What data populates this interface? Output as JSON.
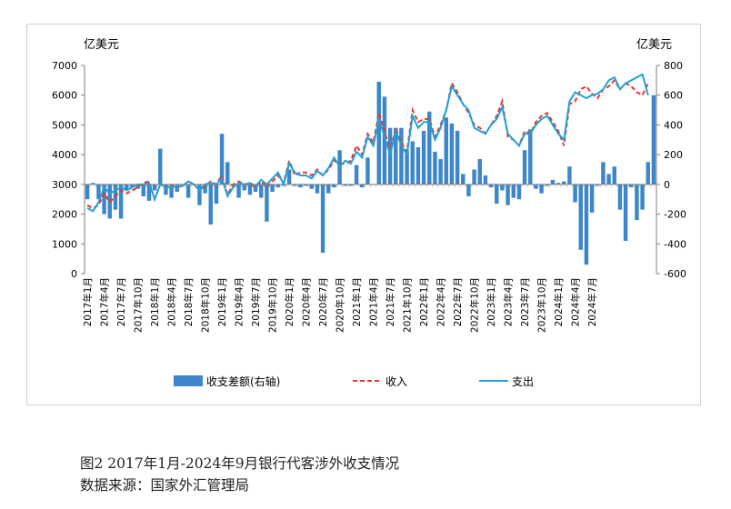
{
  "figure": {
    "caption": "图2   2017年1月-2024年9月银行代客涉外收支情况",
    "source": "数据来源：国家外汇管理局"
  },
  "chart_data": {
    "type": "bar+line",
    "y_left_label": "亿美元",
    "y_right_label": "亿美元",
    "y_left_ticks": [
      "0",
      "1000",
      "2000",
      "3000",
      "4000",
      "5000",
      "6000",
      "7000"
    ],
    "y_right_ticks": [
      "-600",
      "-400",
      "-200",
      "0",
      "200",
      "400",
      "600",
      "800"
    ],
    "y_left_lim": [
      0,
      7000
    ],
    "y_right_lim": [
      -600,
      800
    ],
    "x_tick_labels": [
      "2017年1月",
      "2017年4月",
      "2017年7月",
      "2017年10月",
      "2018年1月",
      "2018年4月",
      "2018年7月",
      "2018年10月",
      "2019年1月",
      "2019年4月",
      "2019年7月",
      "2019年10月",
      "2020年1月",
      "2020年4月",
      "2020年7月",
      "2020年10月",
      "2021年1月",
      "2021年4月",
      "2021年7月",
      "2021年10月",
      "2022年1月",
      "2022年4月",
      "2022年7月",
      "2022年10月",
      "2023年1月",
      "2023年4月",
      "2023年7月",
      "2023年10月",
      "2024年1月",
      "2024年4月",
      "2024年7月"
    ],
    "legend": {
      "position": "bottom",
      "items": [
        "收支差额(右轴)",
        "收入",
        "支出"
      ]
    },
    "colors": {
      "balance": "#3d86c9",
      "income": "#e8352b",
      "expense": "#1fa3d9"
    },
    "series": [
      {
        "name": "收支差额(右轴)",
        "axis": "right",
        "kind": "bar",
        "values": [
          -100,
          10,
          -100,
          -200,
          -230,
          -170,
          -230,
          -40,
          -20,
          -30,
          -80,
          -110,
          -40,
          240,
          -70,
          -90,
          -50,
          -10,
          -90,
          -5,
          -140,
          -60,
          -270,
          -130,
          340,
          150,
          -10,
          -90,
          -40,
          -70,
          -50,
          -90,
          -250,
          -50,
          -20,
          -10,
          100,
          -10,
          -20,
          -10,
          -30,
          -60,
          -460,
          -60,
          -20,
          230,
          -10,
          -10,
          130,
          -20,
          180,
          0,
          690,
          590,
          380,
          380,
          380,
          230,
          290,
          250,
          360,
          490,
          220,
          170,
          450,
          410,
          360,
          70,
          -80,
          100,
          170,
          60,
          -20,
          -130,
          -40,
          -140,
          -90,
          -100,
          230,
          370,
          -30,
          -60,
          -10,
          30,
          10,
          20,
          120,
          -120,
          -440,
          -540,
          -190,
          -10,
          150,
          70,
          120,
          -170,
          -380,
          -20,
          -240,
          -170,
          150,
          600
        ]
      },
      {
        "name": "收入",
        "axis": "left",
        "kind": "dashed-line",
        "values": [
          2300,
          2200,
          2300,
          2700,
          2400,
          2600,
          2800,
          2700,
          2800,
          2900,
          3050,
          3100,
          2500,
          3000,
          2900,
          2950,
          2900,
          2950,
          3100,
          3000,
          2800,
          2950,
          3100,
          3000,
          3300,
          2650,
          3000,
          3100,
          3000,
          3000,
          2900,
          3100,
          2900,
          3100,
          3300,
          3050,
          3800,
          3300,
          3400,
          3400,
          3300,
          3500,
          3300,
          3500,
          3800,
          3700,
          3700,
          3800,
          4300,
          4000,
          4700,
          4400,
          5400,
          4800,
          4100,
          4900,
          4400,
          4100,
          5500,
          5100,
          5200,
          5200,
          4600,
          5000,
          5500,
          6400,
          6100,
          5700,
          5400,
          5000,
          4900,
          4700,
          5000,
          5300,
          5800,
          4600,
          4500,
          4300,
          4800,
          4700,
          5100,
          5300,
          5400,
          5100,
          4800,
          4300,
          5700,
          5800,
          6200,
          6300,
          6050,
          5900,
          6200,
          6300,
          6500,
          6200,
          6400,
          6300,
          6100,
          6000,
          6400
        ]
      },
      {
        "name": "支出",
        "axis": "left",
        "kind": "line",
        "values": [
          2200,
          2100,
          2400,
          2900,
          2700,
          2800,
          2900,
          2800,
          2900,
          3000,
          3000,
          3050,
          2500,
          3000,
          2900,
          2900,
          2950,
          2950,
          3100,
          3000,
          2800,
          3000,
          3050,
          3000,
          3200,
          2600,
          2900,
          3050,
          3000,
          3050,
          2950,
          3150,
          3000,
          3200,
          3400,
          3000,
          3700,
          3400,
          3300,
          3300,
          3200,
          3450,
          3300,
          3550,
          3900,
          3600,
          3800,
          3700,
          4100,
          3900,
          4600,
          4300,
          5200,
          4600,
          4000,
          4800,
          4300,
          4000,
          5300,
          4900,
          5100,
          5100,
          4500,
          4900,
          5500,
          6300,
          6000,
          5700,
          5500,
          4900,
          4800,
          4700,
          5000,
          5200,
          5600,
          4700,
          4500,
          4300,
          4700,
          4700,
          5000,
          5200,
          5300,
          5000,
          4700,
          4500,
          5800,
          6100,
          6000,
          5900,
          6000,
          6050,
          6200,
          6500,
          6600,
          6200,
          6400,
          6500,
          6600,
          6700,
          6000
        ]
      }
    ]
  }
}
